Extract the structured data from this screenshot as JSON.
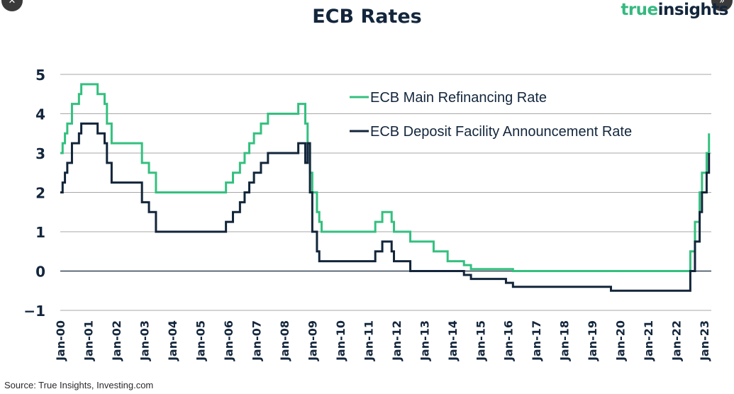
{
  "header": {
    "title": "ECB Rates",
    "brand_part1": "true",
    "brand_part2": "insights"
  },
  "source": "Source: True Insights, Investing.com",
  "colors": {
    "refi": "#34c07f",
    "deposit": "#12253a",
    "grid": "#8a8a8a",
    "text": "#13263c"
  },
  "icons": {
    "left_button": "close-icon",
    "right_button": "double-chevron-icon"
  },
  "chart_data": {
    "type": "line",
    "title": "ECB Rates",
    "xlabel": "",
    "ylabel": "",
    "ylim": [
      -1,
      5
    ],
    "yticks": [
      -1,
      0,
      1,
      2,
      3,
      4,
      5
    ],
    "xlim": [
      "2000-01",
      "2023-04"
    ],
    "xtick_labels": [
      "Jan-00",
      "Jan-01",
      "Jan-02",
      "Jan-03",
      "Jan-04",
      "Jan-05",
      "Jan-06",
      "Jan-07",
      "Jan-08",
      "Jan-09",
      "Jan-10",
      "Jan-11",
      "Jan-12",
      "Jan-13",
      "Jan-14",
      "Jan-15",
      "Jan-16",
      "Jan-17",
      "Jan-18",
      "Jan-19",
      "Jan-20",
      "Jan-21",
      "Jan-22",
      "Jan-23"
    ],
    "grid": true,
    "legend_position": "top-right",
    "series": [
      {
        "name": "ECB Main Refinancing Rate",
        "color": "#34c07f",
        "step": true,
        "points": [
          [
            "2000-01",
            3.0
          ],
          [
            "2000-02",
            3.25
          ],
          [
            "2000-03",
            3.5
          ],
          [
            "2000-04",
            3.75
          ],
          [
            "2000-06",
            4.25
          ],
          [
            "2000-09",
            4.5
          ],
          [
            "2000-10",
            4.75
          ],
          [
            "2001-05",
            4.5
          ],
          [
            "2001-08",
            4.25
          ],
          [
            "2001-09",
            3.75
          ],
          [
            "2001-11",
            3.25
          ],
          [
            "2002-12",
            2.75
          ],
          [
            "2003-03",
            2.5
          ],
          [
            "2003-06",
            2.0
          ],
          [
            "2005-12",
            2.25
          ],
          [
            "2006-03",
            2.5
          ],
          [
            "2006-06",
            2.75
          ],
          [
            "2006-08",
            3.0
          ],
          [
            "2006-10",
            3.25
          ],
          [
            "2006-12",
            3.5
          ],
          [
            "2007-03",
            3.75
          ],
          [
            "2007-06",
            4.0
          ],
          [
            "2008-07",
            4.25
          ],
          [
            "2008-10",
            3.75
          ],
          [
            "2008-11",
            3.25
          ],
          [
            "2008-12",
            2.5
          ],
          [
            "2009-01",
            2.0
          ],
          [
            "2009-03",
            1.5
          ],
          [
            "2009-04",
            1.25
          ],
          [
            "2009-05",
            1.0
          ],
          [
            "2011-04",
            1.25
          ],
          [
            "2011-07",
            1.5
          ],
          [
            "2011-11",
            1.25
          ],
          [
            "2011-12",
            1.0
          ],
          [
            "2012-07",
            0.75
          ],
          [
            "2013-05",
            0.5
          ],
          [
            "2013-11",
            0.25
          ],
          [
            "2014-06",
            0.15
          ],
          [
            "2014-09",
            0.05
          ],
          [
            "2016-03",
            0.0
          ],
          [
            "2022-07",
            0.5
          ],
          [
            "2022-09",
            1.25
          ],
          [
            "2022-11",
            2.0
          ],
          [
            "2022-12",
            2.5
          ],
          [
            "2023-02",
            3.0
          ],
          [
            "2023-03",
            3.5
          ]
        ]
      },
      {
        "name": "ECB Deposit Facility Announcement Rate",
        "color": "#12253a",
        "step": true,
        "points": [
          [
            "2000-01",
            2.0
          ],
          [
            "2000-02",
            2.25
          ],
          [
            "2000-03",
            2.5
          ],
          [
            "2000-04",
            2.75
          ],
          [
            "2000-06",
            3.25
          ],
          [
            "2000-09",
            3.5
          ],
          [
            "2000-10",
            3.75
          ],
          [
            "2001-05",
            3.5
          ],
          [
            "2001-08",
            3.25
          ],
          [
            "2001-09",
            2.75
          ],
          [
            "2001-11",
            2.25
          ],
          [
            "2002-12",
            1.75
          ],
          [
            "2003-03",
            1.5
          ],
          [
            "2003-06",
            1.0
          ],
          [
            "2005-12",
            1.25
          ],
          [
            "2006-03",
            1.5
          ],
          [
            "2006-06",
            1.75
          ],
          [
            "2006-08",
            2.0
          ],
          [
            "2006-10",
            2.25
          ],
          [
            "2006-12",
            2.5
          ],
          [
            "2007-03",
            2.75
          ],
          [
            "2007-06",
            3.0
          ],
          [
            "2008-07",
            3.25
          ],
          [
            "2008-10",
            2.75
          ],
          [
            "2008-11",
            3.25
          ],
          [
            "2008-12",
            2.0
          ],
          [
            "2009-01",
            1.0
          ],
          [
            "2009-03",
            0.5
          ],
          [
            "2009-04",
            0.25
          ],
          [
            "2011-04",
            0.5
          ],
          [
            "2011-07",
            0.75
          ],
          [
            "2011-11",
            0.5
          ],
          [
            "2011-12",
            0.25
          ],
          [
            "2012-07",
            0.0
          ],
          [
            "2014-06",
            -0.1
          ],
          [
            "2014-09",
            -0.2
          ],
          [
            "2015-12",
            -0.3
          ],
          [
            "2016-03",
            -0.4
          ],
          [
            "2019-09",
            -0.5
          ],
          [
            "2022-07",
            0.0
          ],
          [
            "2022-09",
            0.75
          ],
          [
            "2022-11",
            1.5
          ],
          [
            "2022-12",
            2.0
          ],
          [
            "2023-02",
            2.5
          ],
          [
            "2023-03",
            3.0
          ]
        ]
      }
    ]
  }
}
